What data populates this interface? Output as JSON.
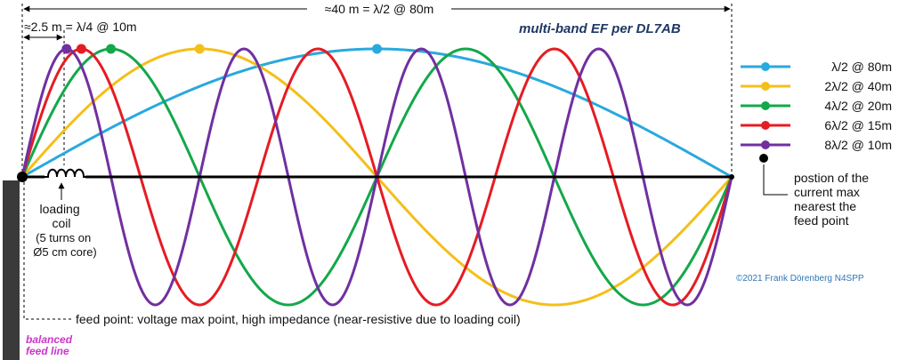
{
  "title": "multi-band EF per DL7AB",
  "top_dimension_label": "≈40 m = λ/2 @ 80m",
  "coil_dimension_label": "≈2.5 m = λ/4 @ 10m",
  "loading_coil_label": [
    "loading",
    "coil"
  ],
  "coil_spec_label": [
    "(5 turns on",
    "Ø5 cm core)"
  ],
  "feed_point_note": "feed point: voltage max point, high impedance (near-resistive due to loading coil)",
  "current_max_note": [
    "postion of the",
    "current max",
    "nearest the",
    "feed point"
  ],
  "credit": "©2021 Frank Dörenberg N4SPP",
  "balanced_feed_line_label": [
    "balanced",
    "feed line"
  ],
  "colors": {
    "title": "#1f3864",
    "credit": "#2e75b6",
    "feed_line_label": "#cc33cc",
    "wire": "#000000",
    "feed_line": "#3a3a3a"
  },
  "legend": [
    {
      "label": "λ/2 @ 80m",
      "color": "#29a9dd",
      "half_waves": 1
    },
    {
      "label": "2λ/2 @ 40m",
      "color": "#f4bf1a",
      "half_waves": 2
    },
    {
      "label": "4λ/2 @ 20m",
      "color": "#13a84a",
      "half_waves": 4
    },
    {
      "label": "6λ/2 @ 15m",
      "color": "#e51c23",
      "half_waves": 6
    },
    {
      "label": "8λ/2 @ 10m",
      "color": "#7030a0",
      "half_waves": 8
    }
  ]
}
